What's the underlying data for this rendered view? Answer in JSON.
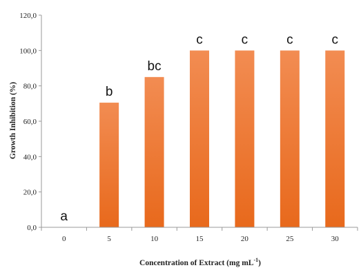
{
  "chart_data": {
    "type": "bar",
    "categories": [
      "0",
      "5",
      "10",
      "15",
      "20",
      "25",
      "30"
    ],
    "values": [
      0,
      70.5,
      85.0,
      100.0,
      100.0,
      100.0,
      100.0
    ],
    "significance_letters": [
      "a",
      "b",
      "bc",
      "c",
      "c",
      "c",
      "c"
    ],
    "ylim": [
      0,
      120
    ],
    "y_ticks": [
      "0,0",
      "20,0",
      "40,0",
      "60,0",
      "80,0",
      "100,0",
      "120,0"
    ],
    "ylabel": "Growth Inhibition (%)",
    "xlabel": "Concentration of Extract (mg mL",
    "xlabel_superscript": "-1",
    "xlabel_suffix": ")",
    "grid": false,
    "legend": "none",
    "colors": {
      "bar_top": "#f28c52",
      "bar_bottom": "#e8691c",
      "axis": "#999999"
    }
  }
}
